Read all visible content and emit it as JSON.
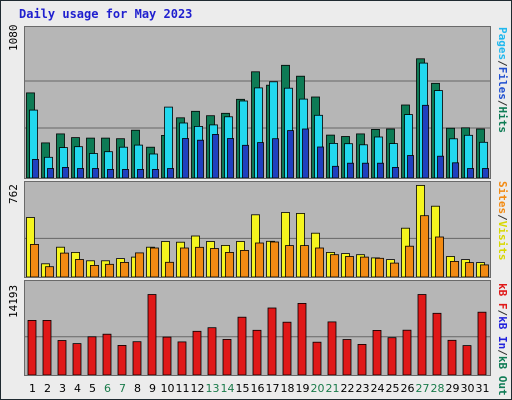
{
  "title": "Daily usage for May 2023",
  "colors": {
    "hits": "#0e7b55",
    "files": "#22d8ee",
    "pages": "#1f3fbf",
    "visits": "#f5f51e",
    "sites": "#f28a12",
    "kb_in": "#2222dd",
    "kb_out": "#0e7b55",
    "kb_f": "#e01818",
    "grid": "#666666",
    "weekend_day": "#1a7b4a",
    "weekday_day": "#000000"
  },
  "panels": {
    "top": {
      "ymax_label": "1080",
      "legend": [
        {
          "text": "Pages",
          "color": "#22b8ee"
        },
        {
          "text": "/",
          "color": "#333333"
        },
        {
          "text": "Files",
          "color": "#2050d0"
        },
        {
          "text": "/",
          "color": "#333333"
        },
        {
          "text": "Hits",
          "color": "#0e7b55"
        }
      ]
    },
    "middle": {
      "ymax_label": "762",
      "legend": [
        {
          "text": "Sites",
          "color": "#f28a12"
        },
        {
          "text": "/",
          "color": "#333333"
        },
        {
          "text": "Visits",
          "color": "#d8d800"
        }
      ]
    },
    "bottom": {
      "ymax_label": "14193",
      "legend": [
        {
          "text": "kB F",
          "color": "#e01818"
        },
        {
          "text": "/",
          "color": "#333333"
        },
        {
          "text": "kB In",
          "color": "#2222dd"
        },
        {
          "text": "/",
          "color": "#333333"
        },
        {
          "text": "kB Out",
          "color": "#0e7b55"
        }
      ]
    }
  },
  "chart_data": {
    "type": "bar",
    "title": "Daily usage for May 2023",
    "categories": [
      "1",
      "2",
      "3",
      "4",
      "5",
      "6",
      "7",
      "8",
      "9",
      "10",
      "11",
      "12",
      "13",
      "14",
      "15",
      "16",
      "17",
      "18",
      "19",
      "20",
      "21",
      "22",
      "23",
      "24",
      "25",
      "26",
      "27",
      "28",
      "29",
      "30",
      "31"
    ],
    "weekend_days": [
      "6",
      "7",
      "13",
      "14",
      "20",
      "21",
      "27",
      "28"
    ],
    "top_ymax": 1080,
    "middle_ymax": 762,
    "bottom_ymax": 14193,
    "series_top": [
      {
        "name": "Hits",
        "values": [
          625,
          258,
          324,
          297,
          293,
          293,
          289,
          351,
          226,
          313,
          442,
          490,
          458,
          475,
          578,
          780,
          682,
          828,
          748,
          595,
          315,
          305,
          324,
          357,
          360,
          536,
          876,
          696,
          366,
          369,
          360
        ]
      },
      {
        "name": "Files",
        "values": [
          499,
          152,
          223,
          230,
          180,
          193,
          226,
          242,
          176,
          521,
          404,
          379,
          390,
          450,
          566,
          662,
          707,
          660,
          580,
          461,
          254,
          252,
          244,
          301,
          253,
          466,
          844,
          642,
          288,
          314,
          262
        ]
      },
      {
        "name": "Pages",
        "values": [
          137,
          70,
          78,
          70,
          70,
          63,
          63,
          63,
          63,
          70,
          290,
          278,
          320,
          290,
          240,
          260,
          289,
          348,
          360,
          228,
          86,
          109,
          109,
          109,
          78,
          165,
          534,
          160,
          112,
          70,
          70
        ]
      }
    ],
    "series_middle": [
      {
        "name": "Visits",
        "values": [
          493,
          109,
          247,
          204,
          134,
          134,
          152,
          165,
          247,
          294,
          288,
          340,
          294,
          262,
          294,
          515,
          296,
          534,
          527,
          363,
          204,
          194,
          185,
          158,
          144,
          404,
          759,
          586,
          170,
          144,
          119
        ]
      },
      {
        "name": "Sites",
        "values": [
          270,
          85,
          198,
          145,
          96,
          105,
          121,
          200,
          240,
          122,
          240,
          246,
          236,
          204,
          220,
          282,
          290,
          260,
          260,
          240,
          185,
          170,
          165,
          155,
          115,
          255,
          508,
          331,
          129,
          119,
          100
        ]
      }
    ],
    "series_bottom": [
      {
        "name": "kB F",
        "values": [
          8520,
          8520,
          5380,
          4900,
          5960,
          6360,
          4610,
          5200,
          12560,
          5910,
          5170,
          6820,
          7370,
          5550,
          9010,
          6970,
          10450,
          8230,
          11160,
          5110,
          8280,
          5530,
          4780,
          6960,
          5820,
          6990,
          12560,
          9620,
          5410,
          4590,
          9800
        ]
      }
    ]
  }
}
